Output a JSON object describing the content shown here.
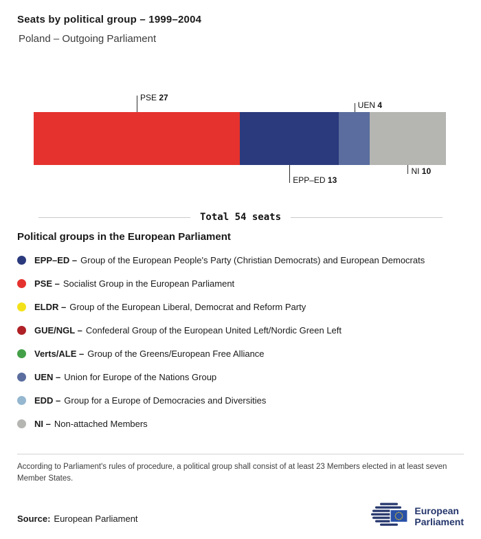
{
  "header": {
    "title": "Seats by political group – 1999–2004",
    "subtitle": "Poland – Outgoing Parliament"
  },
  "chart_data": {
    "type": "bar",
    "orientation": "horizontal-stacked",
    "title": "Seats by political group – 1999–2004",
    "subtitle": "Poland – Outgoing Parliament",
    "total": 54,
    "total_label": "Total 54 seats",
    "categories": [
      "PSE",
      "EPP–ED",
      "UEN",
      "NI"
    ],
    "values": [
      27,
      13,
      4,
      10
    ],
    "segments": [
      {
        "name": "PSE",
        "value": 27,
        "color": "#e5322e",
        "label_side": "top",
        "tick_len": 24
      },
      {
        "name": "EPP–ED",
        "value": 13,
        "color": "#2b3a7d",
        "label_side": "bottom",
        "tick_len": 26
      },
      {
        "name": "UEN",
        "value": 4,
        "color": "#5a6d9e",
        "label_side": "top",
        "tick_len": 13
      },
      {
        "name": "NI",
        "value": 10,
        "color": "#b5b5b2",
        "label_side": "bottom",
        "tick_len": 13
      }
    ]
  },
  "legend": {
    "heading": "Political groups in the European Parliament",
    "items": [
      {
        "abbr": "EPP–ED –",
        "desc": "Group of the European People's Party (Christian Democrats) and European Democrats",
        "color": "#2b3a7d"
      },
      {
        "abbr": "PSE –",
        "desc": "Socialist Group in the European Parliament",
        "color": "#e5322e"
      },
      {
        "abbr": "ELDR –",
        "desc": "Group of the European Liberal, Democrat and Reform Party",
        "color": "#f3e219"
      },
      {
        "abbr": "GUE/NGL –",
        "desc": "Confederal Group of the European United Left/Nordic Green Left",
        "color": "#af2126"
      },
      {
        "abbr": "Verts/ALE –",
        "desc": "Group of the Greens/European Free Alliance",
        "color": "#44a048"
      },
      {
        "abbr": "UEN –",
        "desc": "Union for Europe of the Nations Group",
        "color": "#5a6d9e"
      },
      {
        "abbr": "EDD –",
        "desc": "Group for a Europe of Democracies and Diversities",
        "color": "#95b7d0"
      },
      {
        "abbr": "NI –",
        "desc": "Non-attached Members",
        "color": "#b5b5b2"
      }
    ]
  },
  "footnote": "According to Parliament's rules of procedure, a political group shall consist of at least 23 Members elected in at least seven Member States.",
  "source": {
    "label": "Source:",
    "value": "European Parliament"
  },
  "logo": {
    "line1": "European",
    "line2": "Parliament"
  }
}
